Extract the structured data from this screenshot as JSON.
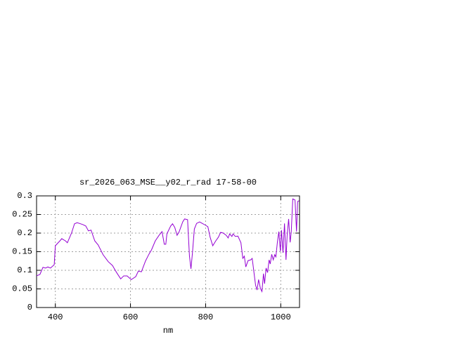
{
  "chart_data": {
    "type": "line",
    "title": "sr_2026_063_MSE__y02_r_rad 17-58-00",
    "x_label": "nm",
    "xlim": [
      350,
      1050
    ],
    "xticks": [
      400,
      600,
      800,
      1000
    ],
    "ylim": [
      0,
      0.3
    ],
    "yticks": [
      0,
      0.05,
      0.1,
      0.15,
      0.2,
      0.25,
      0.3
    ],
    "grid": true,
    "series": [
      {
        "color": "#9400d3",
        "x": [
          350,
          359,
          367,
          374,
          380,
          387,
          397,
          400,
          412,
          417,
          427,
          432,
          443,
          451,
          458,
          473,
          481,
          488,
          495,
          505,
          514,
          527,
          541,
          552,
          563,
          574,
          582,
          591,
          602,
          614,
          621,
          629,
          640,
          649,
          656,
          666,
          676,
          684,
          690,
          694,
          697,
          707,
          712,
          718,
          724,
          729,
          739,
          744,
          752,
          757,
          761,
          765,
          770,
          776,
          784,
          791,
          800,
          806,
          812,
          819,
          827,
          834,
          840,
          847,
          855,
          860,
          864,
          870,
          873,
          879,
          886,
          894,
          899,
          903,
          907,
          913,
          920,
          924,
          928,
          933,
          937,
          941,
          946,
          950,
          954,
          957,
          961,
          965,
          969,
          972,
          976,
          980,
          984,
          987,
          991,
          995,
          999,
          1002,
          1006,
          1010,
          1014,
          1017,
          1021,
          1025,
          1028,
          1032,
          1038,
          1042,
          1045,
          1049
        ],
        "values": [
          0.085,
          0.089,
          0.108,
          0.106,
          0.109,
          0.106,
          0.115,
          0.166,
          0.179,
          0.185,
          0.179,
          0.174,
          0.2,
          0.225,
          0.228,
          0.223,
          0.219,
          0.206,
          0.208,
          0.179,
          0.168,
          0.142,
          0.123,
          0.113,
          0.094,
          0.077,
          0.085,
          0.085,
          0.075,
          0.083,
          0.098,
          0.096,
          0.125,
          0.143,
          0.155,
          0.179,
          0.194,
          0.204,
          0.17,
          0.17,
          0.198,
          0.219,
          0.225,
          0.215,
          0.194,
          0.202,
          0.23,
          0.238,
          0.236,
          0.138,
          0.104,
          0.147,
          0.211,
          0.226,
          0.23,
          0.226,
          0.221,
          0.217,
          0.189,
          0.166,
          0.179,
          0.189,
          0.202,
          0.2,
          0.194,
          0.187,
          0.198,
          0.191,
          0.198,
          0.191,
          0.192,
          0.174,
          0.132,
          0.138,
          0.109,
          0.126,
          0.128,
          0.132,
          0.1,
          0.06,
          0.047,
          0.075,
          0.051,
          0.043,
          0.091,
          0.064,
          0.106,
          0.094,
          0.128,
          0.117,
          0.143,
          0.128,
          0.142,
          0.136,
          0.175,
          0.204,
          0.151,
          0.208,
          0.147,
          0.226,
          0.128,
          0.194,
          0.238,
          0.175,
          0.204,
          0.292,
          0.289,
          0.204,
          0.285,
          0.287
        ]
      }
    ]
  }
}
